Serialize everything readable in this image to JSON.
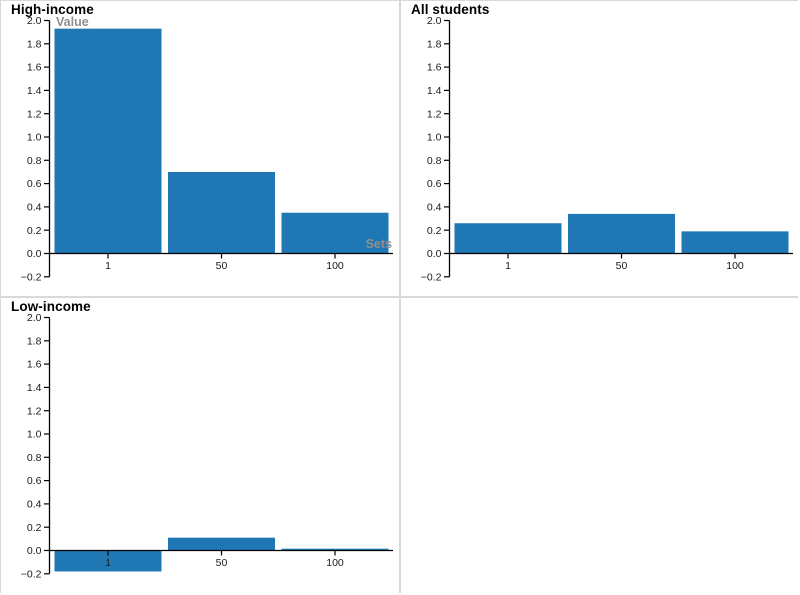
{
  "page": {
    "background": "#ffffff",
    "divider_color": "#d9d9d9"
  },
  "colors": {
    "bar": "#1f77b4",
    "axis": "#000000",
    "tick_label": "#1a1a1a",
    "axis_title": "#8f8f8f"
  },
  "chart_data": [
    {
      "type": "bar",
      "title": "High-income",
      "categories": [
        "1",
        "50",
        "100"
      ],
      "values": [
        1.93,
        0.7,
        0.35
      ],
      "xlabel": "Sets",
      "ylabel": "Value",
      "ylim": [
        -0.2,
        2.0
      ],
      "ytick_step": 0.2,
      "ytick_labels": [
        "2.0",
        "1.8",
        "1.6",
        "1.4",
        "1.2",
        "1.0",
        "0.8",
        "0.6",
        "0.4",
        "0.2",
        "0.0",
        "−0.2"
      ],
      "grid": false,
      "legend": false
    },
    {
      "type": "bar",
      "title": "All students",
      "categories": [
        "1",
        "50",
        "100"
      ],
      "values": [
        0.26,
        0.34,
        0.19
      ],
      "ylim": [
        -0.2,
        2.0
      ],
      "ytick_step": 0.2,
      "ytick_labels": [
        "2.0",
        "1.8",
        "1.6",
        "1.4",
        "1.2",
        "1.0",
        "0.8",
        "0.6",
        "0.4",
        "0.2",
        "0.0",
        "−0.2"
      ],
      "grid": false,
      "legend": false
    },
    {
      "type": "bar",
      "title": "Low-income",
      "categories": [
        "1",
        "50",
        "100"
      ],
      "values": [
        -0.18,
        0.11,
        0.005
      ],
      "ylim": [
        -0.2,
        2.0
      ],
      "ytick_step": 0.2,
      "ytick_labels": [
        "2.0",
        "1.8",
        "1.6",
        "1.4",
        "1.2",
        "1.0",
        "0.8",
        "0.6",
        "0.4",
        "0.2",
        "0.0",
        "−0.2"
      ],
      "grid": false,
      "legend": false
    }
  ]
}
